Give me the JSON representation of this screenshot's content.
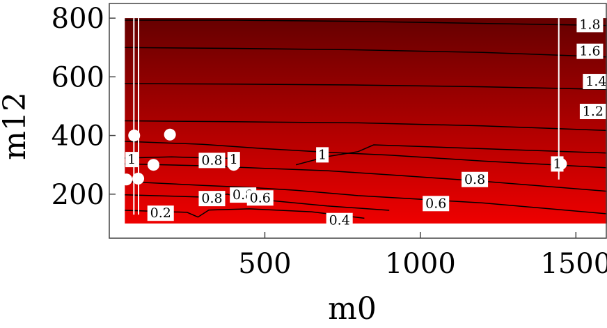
{
  "chart_data": {
    "type": "contour",
    "title": "",
    "xlabel": "m0",
    "ylabel": "m12",
    "xlim": [
      0,
      1600
    ],
    "ylim": [
      50,
      850
    ],
    "data_extent": {
      "x": [
        50,
        1600
      ],
      "y": [
        100,
        800
      ]
    },
    "x_ticks": [
      500,
      1000,
      1500
    ],
    "y_ticks": [
      200,
      400,
      600,
      800
    ],
    "x_tick_labels": [
      "500",
      "1000",
      "1500"
    ],
    "y_tick_labels": [
      "200",
      "400",
      "600",
      "800"
    ],
    "grid": false,
    "colormap": {
      "low": "#ee0000",
      "high": "#660000"
    },
    "contour_labels": [
      {
        "text": "1.8",
        "x": 1545,
        "y": 778
      },
      {
        "text": "1.6",
        "x": 1545,
        "y": 687
      },
      {
        "text": "1.4",
        "x": 1565,
        "y": 584
      },
      {
        "text": "1.2",
        "x": 1555,
        "y": 482
      },
      {
        "text": "1",
        "x": 72,
        "y": 318
      },
      {
        "text": "0.8",
        "x": 330,
        "y": 315
      },
      {
        "text": "1",
        "x": 400,
        "y": 318
      },
      {
        "text": "1",
        "x": 685,
        "y": 334
      },
      {
        "text": "1",
        "x": 1440,
        "y": 303
      },
      {
        "text": "0.8",
        "x": 1175,
        "y": 250
      },
      {
        "text": "0.8",
        "x": 330,
        "y": 185
      },
      {
        "text": "0.8",
        "x": 430,
        "y": 197
      },
      {
        "text": "0.6",
        "x": 485,
        "y": 187
      },
      {
        "text": "0.6",
        "x": 1050,
        "y": 168
      },
      {
        "text": "0.2",
        "x": 165,
        "y": 135
      },
      {
        "text": "0.4",
        "x": 740,
        "y": 110
      }
    ],
    "contours": [
      {
        "level": 1.8,
        "points": [
          [
            50,
            793
          ],
          [
            400,
            793
          ],
          [
            800,
            789
          ],
          [
            1200,
            782
          ],
          [
            1600,
            775
          ]
        ]
      },
      {
        "level": 1.6,
        "points": [
          [
            50,
            700
          ],
          [
            400,
            697
          ],
          [
            800,
            692
          ],
          [
            1200,
            683
          ],
          [
            1600,
            668
          ]
        ]
      },
      {
        "level": 1.4,
        "points": [
          [
            50,
            577
          ],
          [
            400,
            575
          ],
          [
            800,
            572
          ],
          [
            1200,
            566
          ],
          [
            1600,
            557
          ]
        ]
      },
      {
        "level": 1.2,
        "points": [
          [
            50,
            450
          ],
          [
            400,
            447
          ],
          [
            800,
            443
          ],
          [
            1200,
            433
          ],
          [
            1600,
            417
          ]
        ]
      },
      {
        "level": 1.0,
        "points": [
          [
            50,
            380
          ],
          [
            300,
            370
          ],
          [
            500,
            355
          ],
          [
            700,
            343
          ],
          [
            900,
            333
          ],
          [
            1200,
            313
          ],
          [
            1600,
            290
          ]
        ]
      },
      {
        "level": 1.0,
        "points": [
          [
            50,
            323
          ],
          [
            200,
            327
          ],
          [
            330,
            323
          ],
          [
            410,
            322
          ]
        ]
      },
      {
        "level": 1.0,
        "points": [
          [
            600,
            300
          ],
          [
            700,
            328
          ],
          [
            800,
            345
          ],
          [
            850,
            368
          ],
          [
            1200,
            355
          ],
          [
            1600,
            340
          ]
        ]
      },
      {
        "level": 0.8,
        "points": [
          [
            50,
            303
          ],
          [
            300,
            297
          ],
          [
            500,
            288
          ],
          [
            700,
            280
          ],
          [
            900,
            266
          ],
          [
            1200,
            244
          ],
          [
            1600,
            210
          ]
        ]
      },
      {
        "level": 0.8,
        "points": [
          [
            50,
            243
          ],
          [
            300,
            230
          ],
          [
            450,
            223
          ],
          [
            600,
            213
          ],
          [
            800,
            195
          ],
          [
            1200,
            170
          ],
          [
            1600,
            133
          ]
        ]
      },
      {
        "level": 0.8,
        "points": [
          [
            50,
            198
          ],
          [
            300,
            190
          ],
          [
            380,
            200
          ],
          [
            420,
            187
          ],
          [
            500,
            180
          ],
          [
            700,
            160
          ],
          [
            900,
            145
          ]
        ]
      },
      {
        "level": 0.6,
        "points": [
          [
            50,
            145
          ],
          [
            250,
            138
          ],
          [
            285,
            122
          ],
          [
            320,
            146
          ],
          [
            450,
            150
          ],
          [
            650,
            140
          ],
          [
            820,
            118
          ]
        ]
      }
    ],
    "points": [
      {
        "x": 80,
        "y": 400
      },
      {
        "x": 195,
        "y": 403
      },
      {
        "x": 142,
        "y": 300
      },
      {
        "x": 400,
        "y": 300
      },
      {
        "x": 55,
        "y": 250
      },
      {
        "x": 93,
        "y": 253
      },
      {
        "x": 1452,
        "y": 303
      }
    ],
    "vertical_lines": [
      {
        "x": 79,
        "y_range": [
          130,
          800
        ]
      },
      {
        "x": 94,
        "y_range": [
          130,
          800
        ]
      },
      {
        "x": 1445,
        "y_range": [
          250,
          800
        ]
      }
    ]
  }
}
